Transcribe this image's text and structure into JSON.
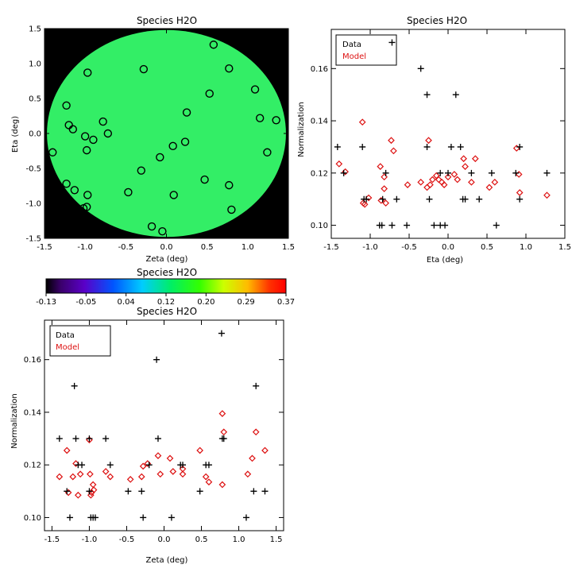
{
  "map_panel": {
    "title": "Species H2O",
    "xlabel": "Zeta (deg)",
    "ylabel": "Eta (deg)",
    "xlim": [
      -1.5,
      1.5
    ],
    "ylim": [
      -1.5,
      1.5
    ],
    "xticks": [
      "-1.5",
      "-1.0",
      "-0.5",
      "0.0",
      "0.5",
      "1.0",
      "1.5"
    ],
    "yticks": [
      "-1.5",
      "-1.0",
      "-0.5",
      "0.0",
      "0.5",
      "1.0",
      "1.5"
    ],
    "field_color": "#33ee66",
    "background_color": "#000000"
  },
  "colorbar": {
    "title": "Species H2O",
    "tick_labels": [
      "-0.13",
      "-0.05",
      "0.04",
      "0.12",
      "0.20",
      "0.29",
      "0.37"
    ],
    "range": [
      -0.13,
      0.37
    ]
  },
  "legend": {
    "data_label": "Data",
    "model_label": "Model"
  },
  "colors": {
    "data": "#000000",
    "model": "#dd1111"
  },
  "chart_data": [
    {
      "type": "scatter",
      "title": "Species H2O",
      "xlabel": "Zeta (deg)",
      "ylabel": "Eta (deg)",
      "xlim": [
        -1.5,
        1.5
      ],
      "ylim": [
        -1.5,
        1.5
      ],
      "series": [
        {
          "name": "",
          "points": [
            [
              0.58,
              1.27
            ],
            [
              -0.28,
              0.92
            ],
            [
              -0.97,
              0.87
            ],
            [
              0.77,
              0.93
            ],
            [
              0.53,
              0.57
            ],
            [
              1.09,
              0.63
            ],
            [
              -1.23,
              0.4
            ],
            [
              1.15,
              0.22
            ],
            [
              1.35,
              0.19
            ],
            [
              -1.2,
              0.12
            ],
            [
              -1.15,
              0.06
            ],
            [
              -0.78,
              0.17
            ],
            [
              -0.72,
              0.0
            ],
            [
              0.25,
              0.3
            ],
            [
              -1.0,
              -0.04
            ],
            [
              -0.9,
              -0.09
            ],
            [
              -0.98,
              -0.24
            ],
            [
              0.23,
              -0.12
            ],
            [
              0.08,
              -0.18
            ],
            [
              -1.4,
              -0.27
            ],
            [
              1.24,
              -0.27
            ],
            [
              -0.08,
              -0.34
            ],
            [
              -0.31,
              -0.53
            ],
            [
              -1.23,
              -0.72
            ],
            [
              0.47,
              -0.66
            ],
            [
              0.77,
              -0.74
            ],
            [
              -1.13,
              -0.81
            ],
            [
              -0.47,
              -0.84
            ],
            [
              0.09,
              -0.88
            ],
            [
              -0.97,
              -0.88
            ],
            [
              -0.98,
              -1.05
            ],
            [
              -1.02,
              -1.07
            ],
            [
              0.8,
              -1.09
            ],
            [
              -0.18,
              -1.33
            ],
            [
              -0.05,
              -1.4
            ]
          ]
        }
      ]
    },
    {
      "type": "scatter",
      "title": "Species H2O",
      "xlabel": "Eta (deg)",
      "ylabel": "Normalization",
      "xlim": [
        -1.5,
        1.5
      ],
      "ylim": [
        0.095,
        0.175
      ],
      "xticks": [
        "-1.5",
        "-1.0",
        "-0.5",
        "0.0",
        "0.5",
        "1.0",
        "1.5"
      ],
      "yticks": [
        "0.10",
        "0.12",
        "0.14",
        "0.16"
      ],
      "series": [
        {
          "name": "Data",
          "points": [
            [
              -1.42,
              0.13
            ],
            [
              -1.34,
              0.12
            ],
            [
              -1.1,
              0.13
            ],
            [
              -1.08,
              0.11
            ],
            [
              -1.05,
              0.11
            ],
            [
              -0.88,
              0.1
            ],
            [
              -0.85,
              0.1
            ],
            [
              -0.8,
              0.12
            ],
            [
              -0.84,
              0.11
            ],
            [
              -0.72,
              0.17
            ],
            [
              -0.72,
              0.1
            ],
            [
              -0.66,
              0.11
            ],
            [
              -0.53,
              0.1
            ],
            [
              -0.35,
              0.16
            ],
            [
              -0.27,
              0.15
            ],
            [
              -0.27,
              0.13
            ],
            [
              -0.24,
              0.11
            ],
            [
              -0.18,
              0.1
            ],
            [
              -0.1,
              0.12
            ],
            [
              -0.1,
              0.1
            ],
            [
              -0.04,
              0.1
            ],
            [
              0.0,
              0.12
            ],
            [
              0.04,
              0.13
            ],
            [
              0.1,
              0.15
            ],
            [
              0.16,
              0.13
            ],
            [
              0.19,
              0.11
            ],
            [
              0.22,
              0.11
            ],
            [
              0.3,
              0.12
            ],
            [
              0.4,
              0.11
            ],
            [
              0.56,
              0.12
            ],
            [
              0.62,
              0.1
            ],
            [
              0.87,
              0.12
            ],
            [
              0.92,
              0.13
            ],
            [
              0.92,
              0.11
            ],
            [
              1.27,
              0.12
            ]
          ]
        },
        {
          "name": "Model",
          "points": [
            [
              -1.4,
              0.1235
            ],
            [
              -1.32,
              0.1205
            ],
            [
              -1.1,
              0.1395
            ],
            [
              -1.09,
              0.1085
            ],
            [
              -1.07,
              0.108
            ],
            [
              -1.02,
              0.1105
            ],
            [
              -0.87,
              0.1225
            ],
            [
              -0.86,
              0.1095
            ],
            [
              -0.82,
              0.1185
            ],
            [
              -0.82,
              0.114
            ],
            [
              -0.8,
              0.1085
            ],
            [
              -0.73,
              0.1325
            ],
            [
              -0.7,
              0.1285
            ],
            [
              -0.52,
              0.1155
            ],
            [
              -0.35,
              0.1165
            ],
            [
              -0.27,
              0.1145
            ],
            [
              -0.25,
              0.1325
            ],
            [
              -0.23,
              0.1155
            ],
            [
              -0.2,
              0.1175
            ],
            [
              -0.15,
              0.119
            ],
            [
              -0.12,
              0.1175
            ],
            [
              -0.08,
              0.1165
            ],
            [
              -0.05,
              0.1155
            ],
            [
              0.0,
              0.1185
            ],
            [
              0.08,
              0.1195
            ],
            [
              0.12,
              0.1175
            ],
            [
              0.2,
              0.1255
            ],
            [
              0.22,
              0.1225
            ],
            [
              0.3,
              0.1165
            ],
            [
              0.35,
              0.1255
            ],
            [
              0.53,
              0.1145
            ],
            [
              0.6,
              0.1165
            ],
            [
              0.88,
              0.1295
            ],
            [
              0.91,
              0.1195
            ],
            [
              0.92,
              0.1125
            ],
            [
              1.27,
              0.1115
            ]
          ]
        }
      ]
    },
    {
      "type": "scatter",
      "title": "Species H2O",
      "xlabel": "Zeta (deg)",
      "ylabel": "Normalization",
      "xlim": [
        -1.6,
        1.6
      ],
      "ylim": [
        0.095,
        0.175
      ],
      "xticks": [
        "-1.5",
        "-1.0",
        "-0.5",
        "0.0",
        "0.5",
        "1.0",
        "1.5"
      ],
      "yticks": [
        "0.10",
        "0.12",
        "0.14",
        "0.16"
      ],
      "series": [
        {
          "name": "Data",
          "points": [
            [
              -1.4,
              0.13
            ],
            [
              -1.3,
              0.11
            ],
            [
              -1.26,
              0.1
            ],
            [
              -1.2,
              0.15
            ],
            [
              -1.18,
              0.13
            ],
            [
              -1.15,
              0.12
            ],
            [
              -1.1,
              0.12
            ],
            [
              -1.0,
              0.13
            ],
            [
              -1.0,
              0.11
            ],
            [
              -0.98,
              0.1
            ],
            [
              -0.95,
              0.1
            ],
            [
              -0.92,
              0.1
            ],
            [
              -0.78,
              0.13
            ],
            [
              -0.72,
              0.12
            ],
            [
              -0.48,
              0.11
            ],
            [
              -0.3,
              0.11
            ],
            [
              -0.28,
              0.1
            ],
            [
              -0.2,
              0.12
            ],
            [
              -0.1,
              0.16
            ],
            [
              -0.08,
              0.13
            ],
            [
              0.1,
              0.1
            ],
            [
              0.22,
              0.12
            ],
            [
              0.25,
              0.12
            ],
            [
              0.48,
              0.11
            ],
            [
              0.56,
              0.12
            ],
            [
              0.6,
              0.12
            ],
            [
              0.77,
              0.17
            ],
            [
              0.78,
              0.13
            ],
            [
              0.8,
              0.13
            ],
            [
              1.1,
              0.1
            ],
            [
              1.2,
              0.11
            ],
            [
              1.23,
              0.15
            ],
            [
              1.35,
              0.11
            ]
          ]
        },
        {
          "name": "Model",
          "points": [
            [
              -1.4,
              0.1155
            ],
            [
              -1.3,
              0.1255
            ],
            [
              -1.28,
              0.1095
            ],
            [
              -1.22,
              0.1155
            ],
            [
              -1.18,
              0.1205
            ],
            [
              -1.15,
              0.1085
            ],
            [
              -1.12,
              0.1165
            ],
            [
              -1.0,
              0.1295
            ],
            [
              -0.99,
              0.1165
            ],
            [
              -0.98,
              0.1085
            ],
            [
              -0.97,
              0.1095
            ],
            [
              -0.95,
              0.1125
            ],
            [
              -0.94,
              0.1105
            ],
            [
              -0.78,
              0.1175
            ],
            [
              -0.72,
              0.1155
            ],
            [
              -0.45,
              0.1145
            ],
            [
              -0.3,
              0.1155
            ],
            [
              -0.28,
              0.1195
            ],
            [
              -0.22,
              0.1205
            ],
            [
              -0.08,
              0.1235
            ],
            [
              -0.05,
              0.1165
            ],
            [
              0.08,
              0.1225
            ],
            [
              0.12,
              0.1175
            ],
            [
              0.25,
              0.1185
            ],
            [
              0.25,
              0.1165
            ],
            [
              0.48,
              0.1255
            ],
            [
              0.56,
              0.1155
            ],
            [
              0.6,
              0.1135
            ],
            [
              0.78,
              0.1395
            ],
            [
              0.8,
              0.1325
            ],
            [
              0.78,
              0.1125
            ],
            [
              1.12,
              0.1165
            ],
            [
              1.18,
              0.1225
            ],
            [
              1.23,
              0.1325
            ],
            [
              1.35,
              0.1255
            ]
          ]
        }
      ]
    }
  ]
}
